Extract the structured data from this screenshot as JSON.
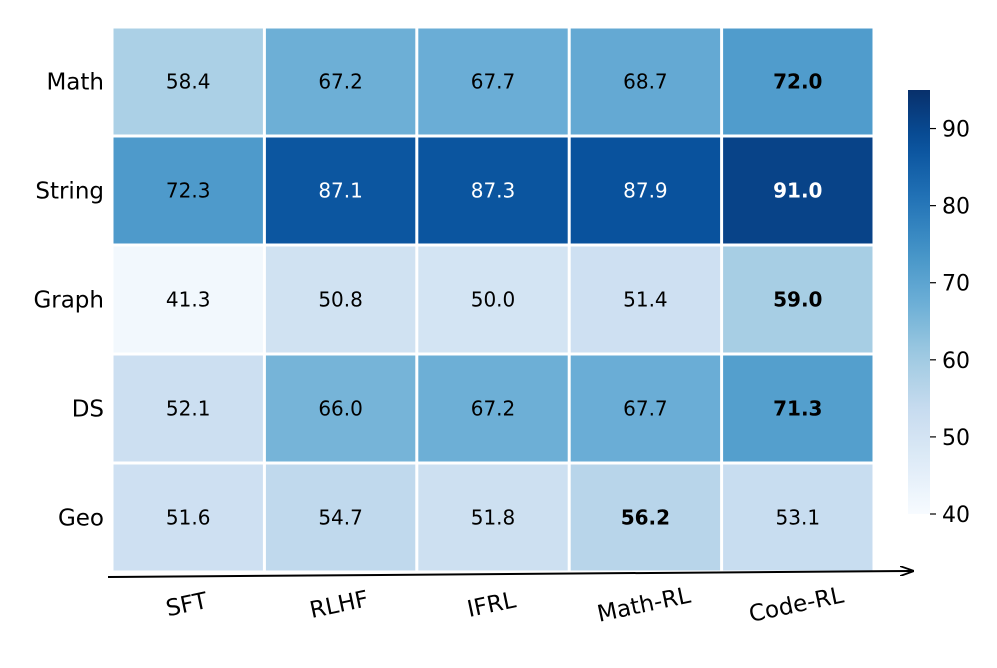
{
  "chart_data": {
    "type": "heatmap",
    "colormap": "Blues",
    "rows": [
      "Math",
      "String",
      "Graph",
      "DS",
      "Geo"
    ],
    "columns": [
      "SFT",
      "RLHF",
      "IFRL",
      "Math-RL",
      "Code-RL"
    ],
    "values": [
      [
        58.4,
        67.2,
        67.7,
        68.7,
        72.0
      ],
      [
        72.3,
        87.1,
        87.3,
        87.9,
        91.0
      ],
      [
        41.3,
        50.8,
        50.0,
        51.4,
        59.0
      ],
      [
        52.1,
        66.0,
        67.2,
        67.7,
        71.3
      ],
      [
        51.6,
        54.7,
        51.8,
        56.2,
        53.1
      ]
    ],
    "cell_labels": [
      [
        "58.4",
        "67.2",
        "67.7",
        "68.7",
        "72.0"
      ],
      [
        "72.3",
        "87.1",
        "87.3",
        "87.9",
        "91.0"
      ],
      [
        "41.3",
        "50.8",
        "50.0",
        "51.4",
        "59.0"
      ],
      [
        "52.1",
        "66.0",
        "67.2",
        "67.7",
        "71.3"
      ],
      [
        "51.6",
        "54.7",
        "51.8",
        "56.2",
        "53.1"
      ]
    ],
    "bold_cells": [
      [
        0,
        4
      ],
      [
        1,
        4
      ],
      [
        2,
        4
      ],
      [
        3,
        4
      ],
      [
        4,
        3
      ]
    ],
    "colorbar": {
      "range": [
        40,
        95
      ],
      "ticks": [
        40,
        50,
        60,
        70,
        80,
        90
      ],
      "tick_labels": [
        "40",
        "50",
        "60",
        "70",
        "80",
        "90"
      ]
    },
    "x_axis_arrow": true,
    "grid_lines": "white",
    "title": "",
    "xlabel": "",
    "ylabel": ""
  }
}
